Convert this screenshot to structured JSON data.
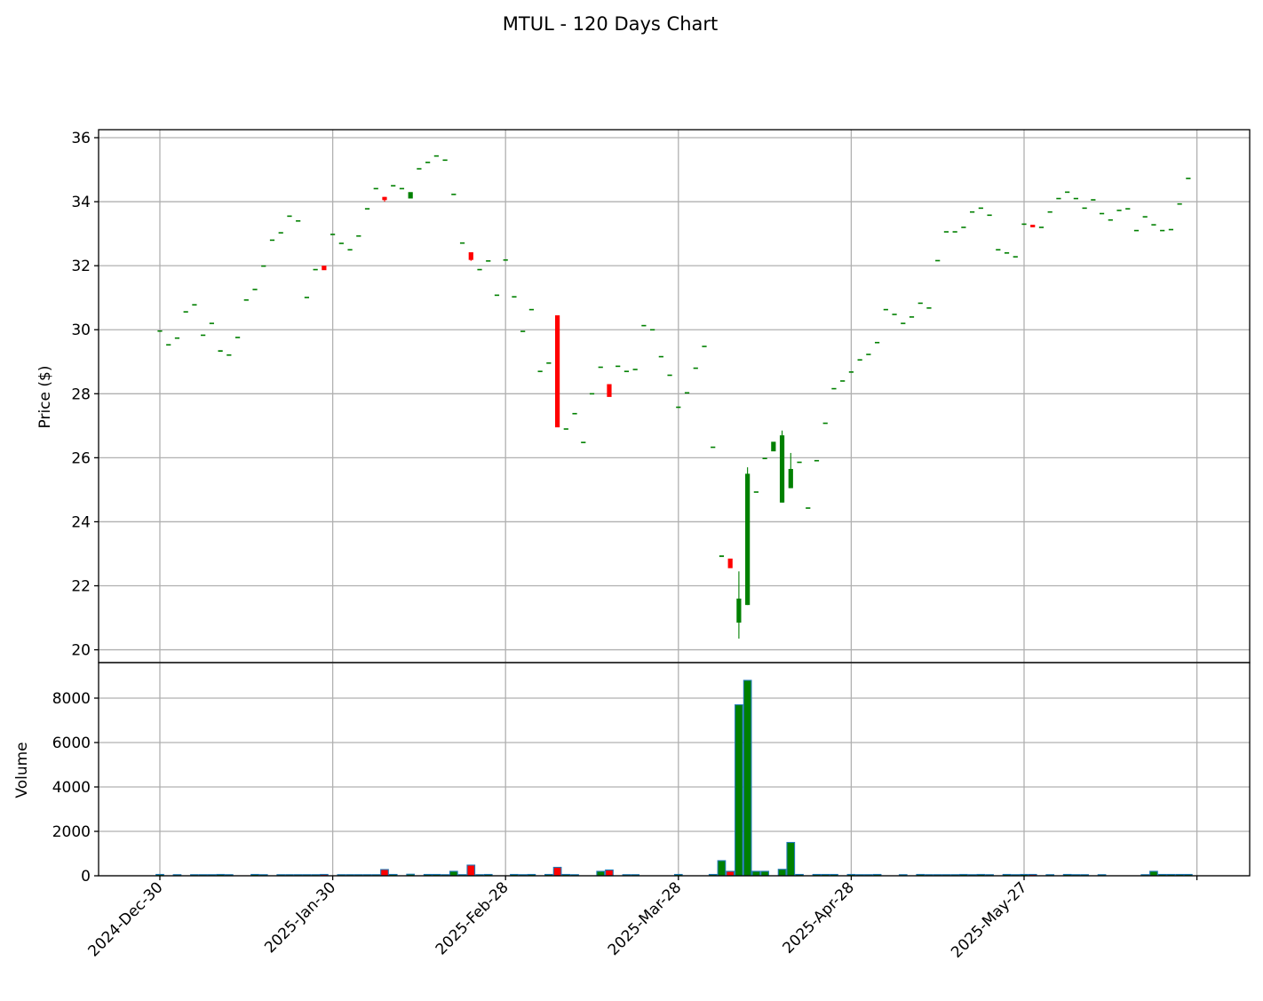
{
  "chart_data": {
    "type": "candlestick",
    "title": "MTUL - 120 Days Chart",
    "ylabel_price": "Price ($)",
    "ylabel_volume": "Volume",
    "grid": true,
    "price_ylim": [
      19.6,
      36.25
    ],
    "price_yticks": [
      20,
      22,
      24,
      26,
      28,
      30,
      32,
      34,
      36
    ],
    "volume_ylim": [
      0,
      9600
    ],
    "volume_yticks": [
      0,
      2000,
      4000,
      6000,
      8000
    ],
    "x_tick_labels": [
      "2024-Dec-30",
      "2025-Jan-30",
      "2025-Feb-28",
      "2025-Mar-28",
      "2025-Apr-28",
      "2025-May-27"
    ],
    "up_color": "#008000",
    "down_color": "#ff0000",
    "volume_edge_color": "#1f77b4",
    "ohlcv_columns": [
      "open",
      "high",
      "low",
      "close",
      "volume"
    ],
    "ohlcv": [
      [
        29.98,
        29.98,
        29.98,
        29.98,
        60
      ],
      [
        29.55,
        29.55,
        29.55,
        29.55,
        0
      ],
      [
        29.76,
        29.76,
        29.76,
        29.76,
        50
      ],
      [
        30.58,
        30.58,
        30.58,
        30.58,
        0
      ],
      [
        30.8,
        30.8,
        30.8,
        30.8,
        50
      ],
      [
        29.85,
        29.85,
        29.85,
        29.85,
        50
      ],
      [
        30.22,
        30.22,
        30.22,
        30.22,
        50
      ],
      [
        29.31,
        29.36,
        29.31,
        29.36,
        60
      ],
      [
        29.23,
        29.23,
        29.23,
        29.23,
        50
      ],
      [
        29.78,
        29.78,
        29.78,
        29.78,
        0
      ],
      [
        30.95,
        30.95,
        30.95,
        30.95,
        0
      ],
      [
        31.28,
        31.28,
        31.28,
        31.28,
        60
      ],
      [
        32.01,
        32.01,
        32.01,
        32.01,
        50
      ],
      [
        32.82,
        32.82,
        32.82,
        32.82,
        0
      ],
      [
        33.05,
        33.05,
        33.05,
        33.05,
        50
      ],
      [
        33.57,
        33.57,
        33.57,
        33.57,
        50
      ],
      [
        33.42,
        33.42,
        33.42,
        33.42,
        50
      ],
      [
        31.03,
        31.03,
        31.03,
        31.03,
        50
      ],
      [
        31.9,
        31.9,
        31.9,
        31.9,
        50
      ],
      [
        32.0,
        32.0,
        31.86,
        31.86,
        60
      ],
      [
        33.0,
        33.0,
        33.0,
        33.0,
        0
      ],
      [
        32.72,
        32.72,
        32.72,
        32.72,
        50
      ],
      [
        32.52,
        32.52,
        32.52,
        32.52,
        50
      ],
      [
        32.95,
        32.95,
        32.95,
        32.95,
        50
      ],
      [
        33.8,
        33.8,
        33.8,
        33.8,
        50
      ],
      [
        34.43,
        34.43,
        34.43,
        34.43,
        50
      ],
      [
        34.15,
        34.15,
        34.0,
        34.05,
        280
      ],
      [
        34.52,
        34.52,
        34.52,
        34.52,
        60
      ],
      [
        34.43,
        34.43,
        34.43,
        34.43,
        0
      ],
      [
        34.1,
        34.3,
        34.1,
        34.3,
        70
      ],
      [
        35.05,
        35.05,
        35.05,
        35.05,
        0
      ],
      [
        35.25,
        35.25,
        35.25,
        35.25,
        60
      ],
      [
        35.45,
        35.45,
        35.45,
        35.45,
        60
      ],
      [
        35.32,
        35.32,
        35.32,
        35.32,
        50
      ],
      [
        34.25,
        34.25,
        34.25,
        34.25,
        200
      ],
      [
        32.73,
        32.73,
        32.73,
        32.73,
        50
      ],
      [
        32.42,
        32.42,
        32.15,
        32.18,
        480
      ],
      [
        31.9,
        31.9,
        31.9,
        31.9,
        50
      ],
      [
        32.17,
        32.17,
        32.17,
        32.17,
        60
      ],
      [
        31.1,
        31.1,
        31.1,
        31.1,
        0
      ],
      [
        32.2,
        32.2,
        32.2,
        32.2,
        0
      ],
      [
        31.05,
        31.05,
        31.05,
        31.05,
        60
      ],
      [
        29.97,
        29.97,
        29.97,
        29.97,
        50
      ],
      [
        30.65,
        30.65,
        30.65,
        30.65,
        60
      ],
      [
        28.72,
        28.72,
        28.72,
        28.72,
        0
      ],
      [
        28.98,
        28.98,
        28.98,
        28.98,
        60
      ],
      [
        30.45,
        30.45,
        26.95,
        26.95,
        380
      ],
      [
        26.92,
        26.92,
        26.92,
        26.92,
        60
      ],
      [
        27.4,
        27.4,
        27.4,
        27.4,
        50
      ],
      [
        26.5,
        26.5,
        26.5,
        26.5,
        0
      ],
      [
        28.02,
        28.02,
        28.02,
        28.02,
        0
      ],
      [
        28.85,
        28.85,
        28.85,
        28.85,
        200
      ],
      [
        28.3,
        28.3,
        27.9,
        27.9,
        260
      ],
      [
        28.88,
        28.88,
        28.88,
        28.88,
        0
      ],
      [
        28.72,
        28.72,
        28.72,
        28.72,
        50
      ],
      [
        28.78,
        28.78,
        28.78,
        28.78,
        50
      ],
      [
        30.15,
        30.15,
        30.15,
        30.15,
        0
      ],
      [
        30.02,
        30.02,
        30.02,
        30.02,
        0
      ],
      [
        29.18,
        29.18,
        29.18,
        29.18,
        0
      ],
      [
        28.6,
        28.6,
        28.6,
        28.6,
        0
      ],
      [
        27.6,
        27.6,
        27.6,
        27.6,
        60
      ],
      [
        28.05,
        28.05,
        28.05,
        28.05,
        0
      ],
      [
        28.82,
        28.82,
        28.82,
        28.82,
        0
      ],
      [
        29.5,
        29.5,
        29.5,
        29.5,
        0
      ],
      [
        26.35,
        26.35,
        26.35,
        26.35,
        60
      ],
      [
        22.9,
        22.95,
        22.9,
        22.95,
        680
      ],
      [
        22.85,
        22.85,
        22.55,
        22.55,
        200
      ],
      [
        20.85,
        22.45,
        20.35,
        21.6,
        7700
      ],
      [
        21.4,
        25.7,
        21.4,
        25.5,
        8800
      ],
      [
        24.95,
        24.95,
        24.95,
        24.95,
        200
      ],
      [
        26.0,
        26.0,
        26.0,
        26.0,
        200
      ],
      [
        26.2,
        26.5,
        26.2,
        26.5,
        0
      ],
      [
        24.6,
        26.85,
        24.6,
        26.7,
        290
      ],
      [
        25.05,
        26.15,
        25.05,
        25.65,
        1500
      ],
      [
        25.88,
        25.88,
        25.88,
        25.88,
        60
      ],
      [
        24.45,
        24.45,
        24.45,
        24.45,
        0
      ],
      [
        25.93,
        25.93,
        25.93,
        25.93,
        60
      ],
      [
        27.1,
        27.1,
        27.1,
        27.1,
        60
      ],
      [
        28.18,
        28.18,
        28.18,
        28.18,
        60
      ],
      [
        28.42,
        28.42,
        28.42,
        28.42,
        0
      ],
      [
        28.7,
        28.7,
        28.7,
        28.7,
        60
      ],
      [
        29.08,
        29.08,
        29.08,
        29.08,
        50
      ],
      [
        29.25,
        29.25,
        29.25,
        29.25,
        50
      ],
      [
        29.62,
        29.62,
        29.62,
        29.62,
        60
      ],
      [
        30.65,
        30.65,
        30.65,
        30.65,
        0
      ],
      [
        30.5,
        30.5,
        30.5,
        30.5,
        0
      ],
      [
        30.22,
        30.22,
        30.22,
        30.22,
        50
      ],
      [
        30.42,
        30.42,
        30.42,
        30.42,
        0
      ],
      [
        30.85,
        30.85,
        30.85,
        30.85,
        60
      ],
      [
        30.7,
        30.7,
        30.7,
        30.7,
        50
      ],
      [
        32.18,
        32.18,
        32.18,
        32.18,
        50
      ],
      [
        33.08,
        33.08,
        33.08,
        33.08,
        50
      ],
      [
        33.08,
        33.08,
        33.08,
        33.08,
        50
      ],
      [
        33.22,
        33.22,
        33.22,
        33.22,
        60
      ],
      [
        33.7,
        33.7,
        33.7,
        33.7,
        50
      ],
      [
        33.82,
        33.82,
        33.82,
        33.82,
        60
      ],
      [
        33.6,
        33.6,
        33.6,
        33.6,
        50
      ],
      [
        32.52,
        32.52,
        32.52,
        32.52,
        0
      ],
      [
        32.42,
        32.42,
        32.42,
        32.42,
        60
      ],
      [
        32.3,
        32.3,
        32.3,
        32.3,
        50
      ],
      [
        33.32,
        33.32,
        33.32,
        33.32,
        60
      ],
      [
        33.28,
        33.28,
        33.2,
        33.2,
        60
      ],
      [
        33.22,
        33.22,
        33.22,
        33.22,
        0
      ],
      [
        33.7,
        33.7,
        33.7,
        33.7,
        50
      ],
      [
        34.12,
        34.12,
        34.12,
        34.12,
        0
      ],
      [
        34.32,
        34.32,
        34.32,
        34.32,
        60
      ],
      [
        34.12,
        34.12,
        34.12,
        34.12,
        50
      ],
      [
        33.82,
        33.82,
        33.82,
        33.82,
        50
      ],
      [
        34.08,
        34.08,
        34.08,
        34.08,
        0
      ],
      [
        33.65,
        33.65,
        33.65,
        33.65,
        50
      ],
      [
        33.45,
        33.45,
        33.45,
        33.45,
        0
      ],
      [
        33.75,
        33.75,
        33.75,
        33.75,
        0
      ],
      [
        33.8,
        33.8,
        33.8,
        33.8,
        0
      ],
      [
        33.12,
        33.12,
        33.12,
        33.12,
        0
      ],
      [
        33.55,
        33.55,
        33.55,
        33.55,
        50
      ],
      [
        33.3,
        33.3,
        33.3,
        33.3,
        200
      ],
      [
        33.12,
        33.12,
        33.12,
        33.12,
        60
      ],
      [
        33.15,
        33.15,
        33.15,
        33.15,
        60
      ],
      [
        33.95,
        33.95,
        33.95,
        33.95,
        60
      ],
      [
        34.75,
        34.75,
        34.75,
        34.75,
        60
      ]
    ]
  }
}
